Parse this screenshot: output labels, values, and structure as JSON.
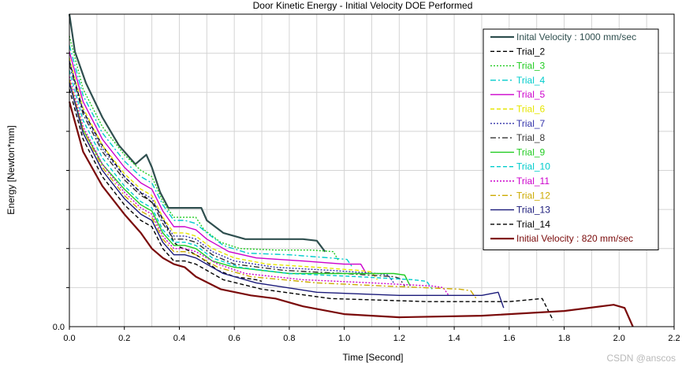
{
  "chart_data": {
    "type": "line",
    "title": "Door Kinetic Energy - Initial Velocity DOE Performed",
    "xlabel": "Time [Second]",
    "ylabel": "Energy [Newton*mm]",
    "xlim": [
      0,
      2.2
    ],
    "ylim": [
      0,
      1.0
    ],
    "x_ticks": [
      "0.0",
      "0.2",
      "0.4",
      "0.6",
      "0.8",
      "1.0",
      "1.2",
      "1.4",
      "1.6",
      "1.8",
      "2.0",
      "2.2"
    ],
    "y_ticks": [
      "0.0"
    ],
    "grid": true,
    "legend_position": "top-right",
    "series": [
      {
        "name": "Inital Velocity : 1000 mm/sec",
        "color": "#2f4f4f",
        "dash": "solid",
        "points": [
          [
            0.0,
            1.0
          ],
          [
            0.02,
            0.88
          ],
          [
            0.06,
            0.78
          ],
          [
            0.12,
            0.67
          ],
          [
            0.18,
            0.58
          ],
          [
            0.24,
            0.52
          ],
          [
            0.28,
            0.55
          ],
          [
            0.3,
            0.51
          ],
          [
            0.33,
            0.43
          ],
          [
            0.36,
            0.38
          ],
          [
            0.4,
            0.38
          ],
          [
            0.44,
            0.38
          ],
          [
            0.48,
            0.38
          ],
          [
            0.5,
            0.34
          ],
          [
            0.56,
            0.3
          ],
          [
            0.64,
            0.28
          ],
          [
            0.75,
            0.28
          ],
          [
            0.85,
            0.28
          ],
          [
            0.9,
            0.275
          ],
          [
            0.93,
            0.24
          ]
        ]
      },
      {
        "name": "Trial_2",
        "color": "#000000",
        "dash": "dash",
        "points": [
          [
            0.0,
            0.85
          ],
          [
            0.05,
            0.69
          ],
          [
            0.12,
            0.58
          ],
          [
            0.2,
            0.48
          ],
          [
            0.27,
            0.42
          ],
          [
            0.31,
            0.39
          ],
          [
            0.35,
            0.33
          ],
          [
            0.38,
            0.27
          ],
          [
            0.4,
            0.255
          ],
          [
            0.43,
            0.245
          ],
          [
            0.48,
            0.22
          ],
          [
            0.54,
            0.18
          ],
          [
            0.6,
            0.16
          ],
          [
            0.68,
            0.15
          ],
          [
            0.7,
            0.145
          ]
        ]
      },
      {
        "name": "Trial_3",
        "color": "#22cc22",
        "dash": "dot",
        "points": [
          [
            0.0,
            0.93
          ],
          [
            0.05,
            0.76
          ],
          [
            0.12,
            0.64
          ],
          [
            0.2,
            0.55
          ],
          [
            0.26,
            0.5
          ],
          [
            0.3,
            0.48
          ],
          [
            0.34,
            0.4
          ],
          [
            0.38,
            0.35
          ],
          [
            0.43,
            0.35
          ],
          [
            0.46,
            0.35
          ],
          [
            0.49,
            0.31
          ],
          [
            0.55,
            0.27
          ],
          [
            0.62,
            0.25
          ],
          [
            0.75,
            0.245
          ],
          [
            0.88,
            0.245
          ],
          [
            0.96,
            0.24
          ],
          [
            0.98,
            0.21
          ]
        ]
      },
      {
        "name": "Trial_4",
        "color": "#00cccc",
        "dash": "dashdot",
        "points": [
          [
            0.0,
            0.9
          ],
          [
            0.05,
            0.74
          ],
          [
            0.12,
            0.62
          ],
          [
            0.2,
            0.53
          ],
          [
            0.26,
            0.48
          ],
          [
            0.3,
            0.46
          ],
          [
            0.34,
            0.39
          ],
          [
            0.38,
            0.34
          ],
          [
            0.42,
            0.34
          ],
          [
            0.46,
            0.33
          ],
          [
            0.5,
            0.3
          ],
          [
            0.56,
            0.26
          ],
          [
            0.65,
            0.235
          ],
          [
            0.8,
            0.23
          ],
          [
            0.95,
            0.22
          ],
          [
            1.01,
            0.215
          ],
          [
            1.03,
            0.19
          ]
        ]
      },
      {
        "name": "Trial_5",
        "color": "#cc00cc",
        "dash": "solid",
        "points": [
          [
            0.0,
            0.88
          ],
          [
            0.05,
            0.72
          ],
          [
            0.12,
            0.6
          ],
          [
            0.2,
            0.51
          ],
          [
            0.26,
            0.46
          ],
          [
            0.3,
            0.44
          ],
          [
            0.34,
            0.37
          ],
          [
            0.38,
            0.32
          ],
          [
            0.42,
            0.32
          ],
          [
            0.46,
            0.31
          ],
          [
            0.5,
            0.28
          ],
          [
            0.58,
            0.24
          ],
          [
            0.68,
            0.22
          ],
          [
            0.85,
            0.21
          ],
          [
            1.0,
            0.2
          ],
          [
            1.06,
            0.2
          ],
          [
            1.08,
            0.17
          ]
        ]
      },
      {
        "name": "Trial_6",
        "color": "#e6e600",
        "dash": "dash",
        "points": [
          [
            0.0,
            0.86
          ],
          [
            0.05,
            0.7
          ],
          [
            0.12,
            0.58
          ],
          [
            0.2,
            0.49
          ],
          [
            0.26,
            0.44
          ],
          [
            0.3,
            0.42
          ],
          [
            0.34,
            0.35
          ],
          [
            0.38,
            0.3
          ],
          [
            0.42,
            0.3
          ],
          [
            0.46,
            0.29
          ],
          [
            0.52,
            0.25
          ],
          [
            0.6,
            0.22
          ],
          [
            0.72,
            0.2
          ],
          [
            0.9,
            0.19
          ],
          [
            1.05,
            0.18
          ],
          [
            1.1,
            0.175
          ],
          [
            1.12,
            0.15
          ]
        ]
      },
      {
        "name": "Trial_7",
        "color": "#3333aa",
        "dash": "dot",
        "points": [
          [
            0.0,
            0.85
          ],
          [
            0.05,
            0.69
          ],
          [
            0.12,
            0.57
          ],
          [
            0.2,
            0.48
          ],
          [
            0.26,
            0.43
          ],
          [
            0.3,
            0.41
          ],
          [
            0.34,
            0.34
          ],
          [
            0.38,
            0.29
          ],
          [
            0.42,
            0.29
          ],
          [
            0.46,
            0.28
          ],
          [
            0.52,
            0.24
          ],
          [
            0.6,
            0.21
          ],
          [
            0.75,
            0.19
          ],
          [
            0.95,
            0.18
          ],
          [
            1.12,
            0.17
          ],
          [
            1.16,
            0.165
          ],
          [
            1.18,
            0.14
          ]
        ]
      },
      {
        "name": "Trial_8",
        "color": "#333333",
        "dash": "dashdot",
        "points": [
          [
            0.0,
            0.84
          ],
          [
            0.05,
            0.68
          ],
          [
            0.12,
            0.56
          ],
          [
            0.2,
            0.47
          ],
          [
            0.26,
            0.42
          ],
          [
            0.3,
            0.4
          ],
          [
            0.34,
            0.33
          ],
          [
            0.38,
            0.28
          ],
          [
            0.42,
            0.28
          ],
          [
            0.46,
            0.27
          ],
          [
            0.52,
            0.23
          ],
          [
            0.6,
            0.2
          ],
          [
            0.78,
            0.18
          ],
          [
            1.0,
            0.17
          ],
          [
            1.18,
            0.16
          ],
          [
            1.2,
            0.155
          ],
          [
            1.22,
            0.13
          ]
        ]
      },
      {
        "name": "Trial_9",
        "color": "#22cc22",
        "dash": "solid",
        "points": [
          [
            0.0,
            0.78
          ],
          [
            0.05,
            0.63
          ],
          [
            0.12,
            0.52
          ],
          [
            0.2,
            0.44
          ],
          [
            0.26,
            0.39
          ],
          [
            0.3,
            0.37
          ],
          [
            0.34,
            0.3
          ],
          [
            0.38,
            0.26
          ],
          [
            0.42,
            0.26
          ],
          [
            0.46,
            0.25
          ],
          [
            0.52,
            0.21
          ],
          [
            0.6,
            0.19
          ],
          [
            0.8,
            0.17
          ],
          [
            1.0,
            0.17
          ],
          [
            1.18,
            0.17
          ],
          [
            1.22,
            0.165
          ],
          [
            1.24,
            0.13
          ]
        ]
      },
      {
        "name": "Trial_10",
        "color": "#00cccc",
        "dash": "dash",
        "points": [
          [
            0.0,
            0.82
          ],
          [
            0.05,
            0.66
          ],
          [
            0.12,
            0.54
          ],
          [
            0.2,
            0.45
          ],
          [
            0.26,
            0.4
          ],
          [
            0.3,
            0.38
          ],
          [
            0.34,
            0.31
          ],
          [
            0.38,
            0.27
          ],
          [
            0.42,
            0.27
          ],
          [
            0.46,
            0.26
          ],
          [
            0.52,
            0.22
          ],
          [
            0.62,
            0.19
          ],
          [
            0.8,
            0.17
          ],
          [
            1.05,
            0.16
          ],
          [
            1.25,
            0.15
          ],
          [
            1.3,
            0.145
          ],
          [
            1.32,
            0.12
          ]
        ]
      },
      {
        "name": "Trial_11",
        "color": "#cc00cc",
        "dash": "dot",
        "points": [
          [
            0.0,
            0.8
          ],
          [
            0.05,
            0.64
          ],
          [
            0.12,
            0.52
          ],
          [
            0.2,
            0.43
          ],
          [
            0.26,
            0.38
          ],
          [
            0.3,
            0.36
          ],
          [
            0.34,
            0.29
          ],
          [
            0.38,
            0.25
          ],
          [
            0.42,
            0.25
          ],
          [
            0.46,
            0.24
          ],
          [
            0.54,
            0.2
          ],
          [
            0.64,
            0.17
          ],
          [
            0.85,
            0.15
          ],
          [
            1.1,
            0.14
          ],
          [
            1.32,
            0.13
          ],
          [
            1.36,
            0.125
          ],
          [
            1.38,
            0.1
          ]
        ]
      },
      {
        "name": "Trial_12",
        "color": "#ccaa00",
        "dash": "dashdot",
        "points": [
          [
            0.0,
            0.79
          ],
          [
            0.05,
            0.63
          ],
          [
            0.12,
            0.51
          ],
          [
            0.2,
            0.42
          ],
          [
            0.26,
            0.37
          ],
          [
            0.3,
            0.35
          ],
          [
            0.34,
            0.28
          ],
          [
            0.38,
            0.24
          ],
          [
            0.42,
            0.24
          ],
          [
            0.46,
            0.23
          ],
          [
            0.54,
            0.19
          ],
          [
            0.66,
            0.16
          ],
          [
            0.9,
            0.14
          ],
          [
            1.15,
            0.13
          ],
          [
            1.42,
            0.12
          ],
          [
            1.46,
            0.115
          ],
          [
            1.48,
            0.09
          ]
        ]
      },
      {
        "name": "Trial_13",
        "color": "#1a1a7a",
        "dash": "solid",
        "points": [
          [
            0.0,
            0.78
          ],
          [
            0.05,
            0.62
          ],
          [
            0.12,
            0.5
          ],
          [
            0.2,
            0.41
          ],
          [
            0.26,
            0.36
          ],
          [
            0.3,
            0.34
          ],
          [
            0.34,
            0.27
          ],
          [
            0.38,
            0.23
          ],
          [
            0.42,
            0.23
          ],
          [
            0.46,
            0.22
          ],
          [
            0.56,
            0.17
          ],
          [
            0.68,
            0.14
          ],
          [
            0.9,
            0.11
          ],
          [
            1.2,
            0.1
          ],
          [
            1.5,
            0.1
          ],
          [
            1.56,
            0.11
          ],
          [
            1.58,
            0.06
          ]
        ]
      },
      {
        "name": "Trial_14",
        "color": "#000000",
        "dash": "dash",
        "points": [
          [
            0.0,
            0.76
          ],
          [
            0.05,
            0.6
          ],
          [
            0.12,
            0.48
          ],
          [
            0.2,
            0.39
          ],
          [
            0.26,
            0.34
          ],
          [
            0.3,
            0.32
          ],
          [
            0.34,
            0.25
          ],
          [
            0.38,
            0.21
          ],
          [
            0.42,
            0.21
          ],
          [
            0.46,
            0.2
          ],
          [
            0.56,
            0.15
          ],
          [
            0.7,
            0.12
          ],
          [
            0.95,
            0.09
          ],
          [
            1.3,
            0.08
          ],
          [
            1.6,
            0.08
          ],
          [
            1.72,
            0.09
          ],
          [
            1.76,
            0.02
          ]
        ]
      },
      {
        "name": "Initial Velocity : 820 mm/sec",
        "color": "#7a0a0a",
        "dash": "solid",
        "points": [
          [
            0.0,
            0.72
          ],
          [
            0.05,
            0.56
          ],
          [
            0.12,
            0.45
          ],
          [
            0.2,
            0.36
          ],
          [
            0.26,
            0.3
          ],
          [
            0.3,
            0.25
          ],
          [
            0.34,
            0.22
          ],
          [
            0.38,
            0.2
          ],
          [
            0.42,
            0.19
          ],
          [
            0.46,
            0.16
          ],
          [
            0.55,
            0.12
          ],
          [
            0.66,
            0.1
          ],
          [
            0.75,
            0.09
          ],
          [
            0.85,
            0.065
          ],
          [
            1.0,
            0.04
          ],
          [
            1.2,
            0.03
          ],
          [
            1.5,
            0.035
          ],
          [
            1.8,
            0.05
          ],
          [
            1.98,
            0.07
          ],
          [
            2.02,
            0.06
          ],
          [
            2.05,
            0.0
          ]
        ]
      }
    ]
  },
  "watermark": "CSDN @anscos"
}
